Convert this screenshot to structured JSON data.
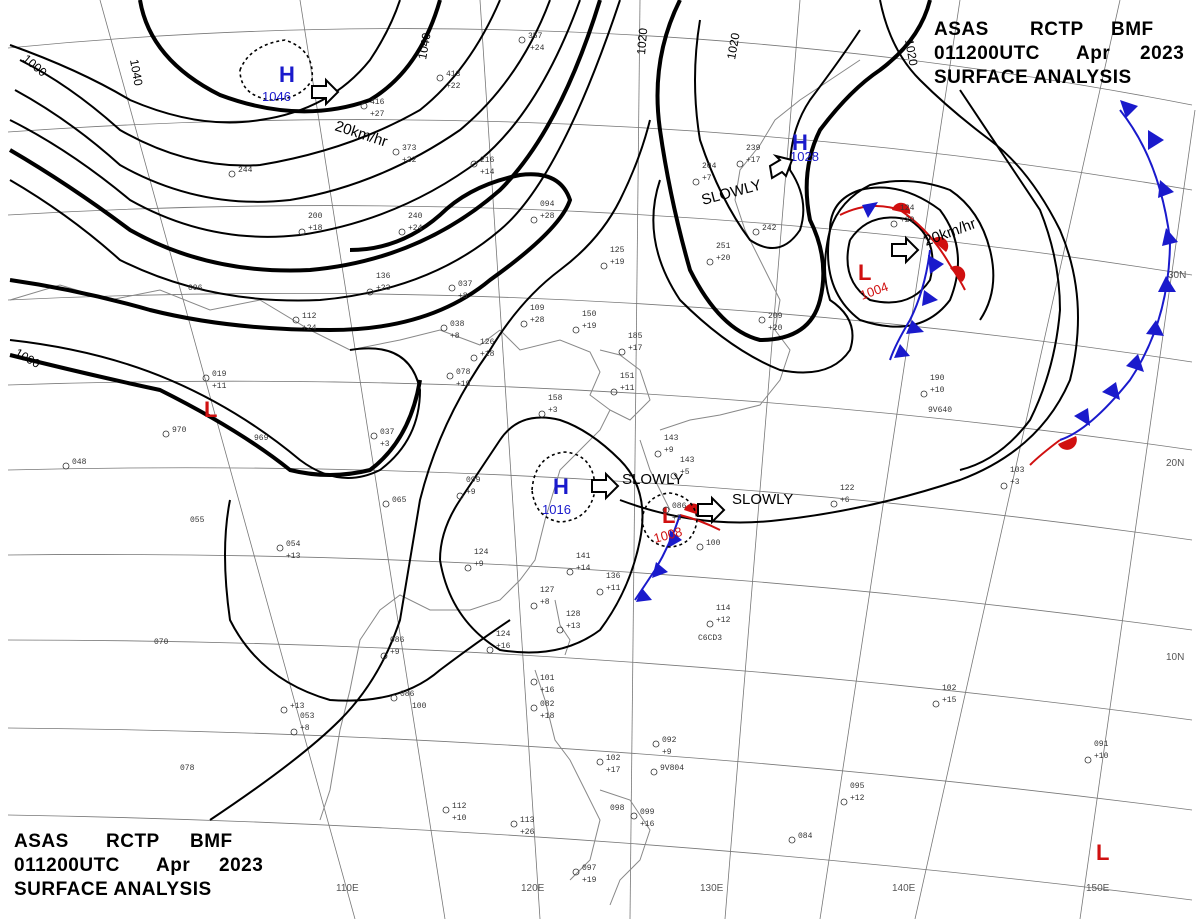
{
  "header_top": {
    "line1": [
      "ASAS",
      "RCTP",
      "BMF"
    ],
    "line2": [
      "011200UTC",
      "Apr",
      "2023"
    ],
    "line3": "SURFACE  ANALYSIS"
  },
  "header_bottom": {
    "line1": [
      "ASAS",
      "RCTP",
      "BMF"
    ],
    "line2": [
      "011200UTC",
      "Apr",
      "2023"
    ],
    "line3": "SURFACE  ANALYSIS"
  },
  "latitude_labels": [
    "30N",
    "20N",
    "10N"
  ],
  "longitude_labels": [
    "110E",
    "120E",
    "130E",
    "140E",
    "150E"
  ],
  "isobar_labels": [
    "1040",
    "1040",
    "1020",
    "1020",
    "1020",
    "1000",
    "1000"
  ],
  "pressure_systems": [
    {
      "type": "H",
      "value": "1046",
      "motion": "20km/hr"
    },
    {
      "type": "H",
      "value": "1028",
      "motion": "SLOWLY"
    },
    {
      "type": "L",
      "value": "1004",
      "motion": "20km/hr"
    },
    {
      "type": "L",
      "value": "",
      "motion": ""
    },
    {
      "type": "H",
      "value": "1016",
      "motion": "SLOWLY"
    },
    {
      "type": "L",
      "value": "1008",
      "motion": "SLOWLY"
    },
    {
      "type": "L",
      "value": "",
      "motion": ""
    }
  ],
  "station_plots": [
    "357",
    "+24",
    "413",
    "+22",
    "416",
    "+27",
    "373",
    "+22",
    "216",
    "+14",
    "244",
    "200",
    "+18",
    "240",
    "+24",
    "094",
    "+28",
    "136",
    "+23",
    "096",
    "037",
    "+8",
    "038",
    "+8",
    "112",
    "+24",
    "019",
    "+11",
    "078",
    "+19",
    "970",
    "969",
    "037",
    "+3",
    "048",
    "055",
    "054",
    "+13",
    "065",
    "099",
    "+9",
    "124",
    "+9",
    "141",
    "+14",
    "136",
    "+11",
    "127",
    "+8",
    "128",
    "+13",
    "086",
    "+9",
    "124",
    "+16",
    "070",
    "086",
    "100",
    "+13",
    "053",
    "+8",
    "078",
    "112",
    "+10",
    "113",
    "+26",
    "097",
    "+19",
    "101",
    "+16",
    "082",
    "+18",
    "102",
    "+17",
    "092",
    "+9",
    "9V804",
    "098",
    "099",
    "+16",
    "084",
    "095",
    "+12",
    "114",
    "+12",
    "C6CD3",
    "086",
    "+5",
    "100",
    "102",
    "+15",
    "091",
    "+10",
    "103",
    "+3",
    "122",
    "+6",
    "190",
    "+10",
    "9V640",
    "209",
    "+20",
    "242",
    "251",
    "+20",
    "204",
    "+7",
    "239",
    "+17",
    "125",
    "+19",
    "150",
    "+19",
    "185",
    "+17",
    "151",
    "+11",
    "158",
    "+3",
    "126",
    "+18",
    "109",
    "+28",
    "143",
    "+9",
    "143",
    "+5",
    "124",
    "+29"
  ],
  "colors": {
    "high": "#1a1acc",
    "low": "#d01010",
    "cold_front": "#1a1acc",
    "warm_front": "#d01010"
  }
}
